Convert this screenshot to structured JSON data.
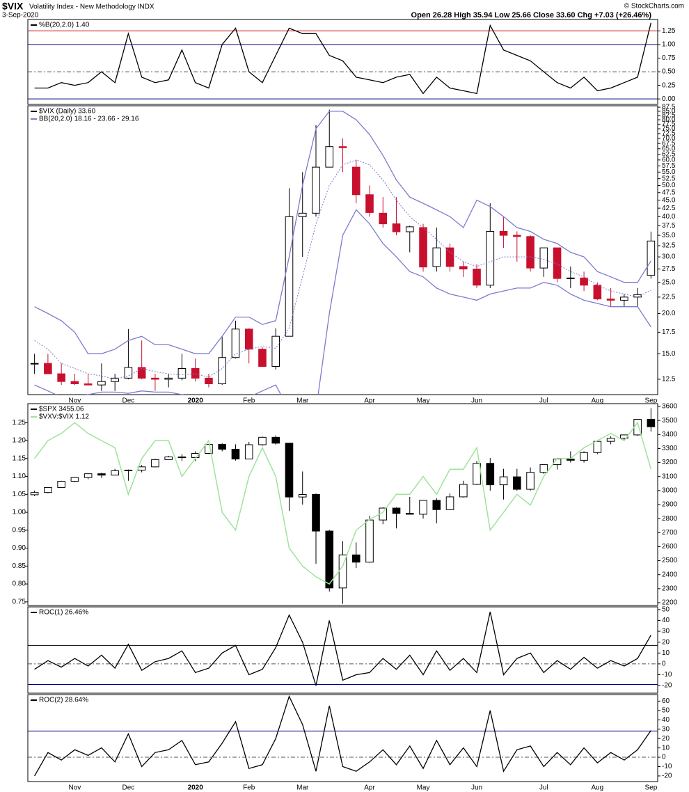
{
  "header": {
    "symbol": "$VIX",
    "subtitle": "Volatility Index - New Methodology  INDX",
    "date": "3-Sep-2020",
    "quote": "Open 26.28  High 35.94  Low 25.66  Close 33.60  Chg +7.03 (+26.46%)",
    "source": "© StockCharts.com"
  },
  "chart_data": [
    {
      "type": "line",
      "ylim": [
        -0.1,
        1.46
      ],
      "yticks": [
        {
          "value": 0,
          "label": "0.00"
        },
        0.25,
        {
          "value": 0.5,
          "label": "0.50"
        },
        0.75,
        {
          "value": 1,
          "label": "1.00"
        },
        1.25
      ],
      "hlines": [
        {
          "value": 1.25,
          "color": "#cc0000"
        },
        {
          "value": 1,
          "color": "#000080"
        },
        {
          "value": 0,
          "color": "#000080"
        },
        {
          "value": 0.5,
          "color": "#555555",
          "dash": true
        }
      ],
      "series": [
        {
          "name": "%B(20,2.0) 1.40",
          "type": "line",
          "color": "#000000",
          "values": [
            0.2,
            0.2,
            0.3,
            0.25,
            0.3,
            0.5,
            0.3,
            1.2,
            0.4,
            0.3,
            0.35,
            0.9,
            0.3,
            0.2,
            1.0,
            1.3,
            0.5,
            0.3,
            0.8,
            1.3,
            1.2,
            1.2,
            0.8,
            0.7,
            0.4,
            0.35,
            0.3,
            0.4,
            0.45,
            0.1,
            0.4,
            0.2,
            0.15,
            0.1,
            1.35,
            0.9,
            0.8,
            0.7,
            0.5,
            0.3,
            0.2,
            0.4,
            0.15,
            0.2,
            0.3,
            0.4,
            1.4
          ]
        }
      ]
    },
    {
      "type": "candlestick",
      "log_scale": true,
      "ylim": [
        11.2,
        88.4
      ],
      "yticks": [
        12.5,
        {
          "value": 15,
          "label": "15.0"
        },
        17.5,
        {
          "value": 20,
          "label": "20.0"
        },
        22.5,
        {
          "value": 25,
          "label": "25.0"
        },
        27.5,
        {
          "value": 30,
          "label": "30.0"
        },
        32.5,
        {
          "value": 35,
          "label": "35.0"
        },
        37.5,
        {
          "value": 40,
          "label": "40.0"
        },
        42.5,
        {
          "value": 45,
          "label": "45.0"
        },
        47.5,
        {
          "value": 50,
          "label": "50.0"
        },
        52.5,
        {
          "value": 55,
          "label": "55.0"
        },
        57.5,
        {
          "value": 60,
          "label": "60.0"
        },
        62.5,
        {
          "value": 65,
          "label": "65.0"
        },
        67.5,
        {
          "value": 70,
          "label": "70.0"
        },
        72.5,
        {
          "value": 75,
          "label": "75.0"
        },
        77.5,
        {
          "value": 80,
          "label": "80.0"
        },
        82.5,
        {
          "value": 85,
          "label": "85.0"
        },
        87.5
      ],
      "categories": [
        null,
        null,
        null,
        "Nov",
        null,
        null,
        null,
        "Dec",
        null,
        null,
        null,
        null,
        "2020",
        null,
        null,
        null,
        "Feb",
        null,
        null,
        null,
        "Mar",
        null,
        null,
        null,
        null,
        "Apr",
        null,
        null,
        null,
        "May",
        null,
        null,
        null,
        "Jun",
        null,
        null,
        null,
        null,
        "Jul",
        null,
        null,
        null,
        "Aug",
        null,
        null,
        null,
        "Sep"
      ],
      "series": [
        {
          "name": "$VIX (Daily) 33.60",
          "type": "candlestick",
          "color": "#000000",
          "down_color": "#c8102e",
          "open": [
            14,
            14,
            13,
            12.3,
            12.1,
            12,
            12.3,
            12.6,
            13.6,
            12.6,
            12.5,
            12.6,
            13.5,
            12.6,
            12.1,
            14.6,
            17.9,
            15.5,
            13.7,
            17,
            40,
            41,
            57,
            66,
            57,
            46.8,
            41,
            38,
            35.9,
            37,
            28,
            32,
            28,
            27.5,
            24.5,
            36,
            35,
            34.7,
            27.7,
            32,
            25.7,
            25.8,
            24.5,
            22.2,
            22,
            22.5,
            26.28
          ],
          "high": [
            15,
            15,
            14,
            13,
            13,
            14,
            13,
            17.9,
            16.5,
            13,
            13,
            15,
            14.5,
            13,
            17,
            19,
            18,
            15.7,
            18,
            49,
            55,
            77,
            86,
            70,
            60,
            50,
            46,
            46,
            37.5,
            38,
            37,
            33,
            29,
            28.5,
            44,
            40,
            36,
            35,
            32,
            32,
            28,
            27,
            25,
            24,
            23,
            24,
            35.94
          ],
          "low": [
            13,
            13,
            12,
            12,
            12,
            11.5,
            11.5,
            12.5,
            12.5,
            11.5,
            11.8,
            12.4,
            12.3,
            11.8,
            12,
            14.5,
            14,
            13.7,
            13.4,
            17,
            30,
            40,
            57,
            55,
            44,
            40,
            37,
            35,
            31,
            27,
            27,
            27,
            26,
            24,
            24,
            32,
            29,
            27,
            26,
            25,
            24,
            23.5,
            22,
            21,
            21,
            21,
            25.66
          ],
          "close": [
            14,
            13,
            12.3,
            12.1,
            12,
            12.3,
            12.6,
            13.6,
            12.6,
            12.5,
            12.6,
            13.5,
            12.6,
            12.1,
            14.6,
            17.9,
            15.5,
            13.7,
            17,
            40,
            41,
            57,
            66,
            65.5,
            46.8,
            41.2,
            38,
            35.9,
            37.2,
            27.9,
            32,
            28,
            27.5,
            24.5,
            36,
            35,
            34.7,
            27.7,
            32,
            25.7,
            25.8,
            24.5,
            22.2,
            22,
            22.5,
            22.9,
            33.6
          ]
        },
        {
          "name": "BB(20,2.0) 18.16 - 23.66 - 29.16",
          "type": "band",
          "color": "#7b7bd0",
          "upper": [
            21,
            20,
            19,
            17.5,
            15,
            15,
            15.5,
            16.5,
            17,
            16,
            16,
            15.5,
            15,
            15,
            17,
            19.5,
            19.5,
            18.5,
            19,
            30,
            50,
            75,
            85,
            85,
            80,
            72,
            62,
            52,
            46,
            44,
            42,
            40,
            37,
            45,
            43,
            40,
            37,
            36,
            34,
            33,
            31,
            30,
            27,
            26,
            25,
            25,
            29.16
          ],
          "middle": [
            16.5,
            15.5,
            14,
            13.5,
            13,
            12.8,
            12.5,
            12.8,
            13.5,
            13.2,
            13,
            12.9,
            13,
            12.7,
            13.5,
            15,
            15.5,
            15.8,
            15.6,
            18,
            26,
            38,
            50,
            58,
            60,
            58,
            52,
            45,
            40,
            37,
            34,
            31,
            29,
            28,
            29,
            30,
            30,
            30,
            29.5,
            28.5,
            27,
            26,
            24.5,
            23.5,
            23,
            22.5,
            23.66
          ],
          "lower": [
            12,
            11.5,
            11,
            11,
            11.2,
            11.4,
            11.4,
            11.3,
            11.5,
            11.4,
            11.4,
            11.2,
            11,
            11,
            11,
            10.8,
            11,
            11.5,
            12,
            10,
            8,
            10,
            20,
            35,
            42,
            38,
            33,
            30,
            27,
            26,
            24,
            23,
            22.5,
            22,
            23,
            23.5,
            24,
            24,
            25,
            24.5,
            23,
            22,
            21.5,
            21,
            21,
            21,
            18.16
          ]
        }
      ]
    },
    {
      "type": "candlestick",
      "ylim": [
        2180,
        3620
      ],
      "yticks": [
        2200,
        2300,
        2400,
        2500,
        2600,
        2700,
        2800,
        2900,
        3000,
        3100,
        3200,
        3300,
        3400,
        3500,
        3600
      ],
      "y2lim": [
        0.74,
        1.303
      ],
      "y2ticks": [
        0.75,
        {
          "value": 0.8,
          "label": "0.80"
        },
        0.85,
        {
          "value": 0.9,
          "label": "0.90"
        },
        0.95,
        {
          "value": 1,
          "label": "1.00"
        },
        1.05,
        {
          "value": 1.1,
          "label": "1.10"
        },
        1.15,
        {
          "value": 1.2,
          "label": "1.20"
        },
        1.25
      ],
      "series": [
        {
          "name": "$SPX 3455.06",
          "type": "candlestick",
          "color": "#000000",
          "down_color": "#000000",
          "open": [
            2970,
            2986,
            3022,
            3066,
            3093,
            3120,
            3110,
            3141,
            3146,
            3169,
            3221,
            3240,
            3235,
            3265,
            3329,
            3295,
            3225,
            3327,
            3380,
            3338,
            2954,
            2972,
            2711,
            2305,
            2541,
            2489,
            2790,
            2875,
            2837,
            2831,
            2930,
            2864,
            2955,
            3044,
            3194,
            3041,
            3098,
            3009,
            3130,
            3185,
            3225,
            3216,
            3271,
            3351,
            3373,
            3397,
            3508
          ],
          "high": [
            3000,
            3025,
            3070,
            3095,
            3122,
            3127,
            3155,
            3150,
            3182,
            3226,
            3248,
            3260,
            3280,
            3330,
            3337,
            3330,
            3347,
            3385,
            3393,
            3340,
            3136,
            2980,
            2720,
            2640,
            2630,
            2820,
            2880,
            2880,
            2955,
            2930,
            2945,
            2980,
            3070,
            3211,
            3233,
            3155,
            3155,
            3165,
            3186,
            3233,
            3280,
            3280,
            3352,
            3387,
            3399,
            3510,
            3588
          ],
          "low": [
            2960,
            2980,
            3020,
            3060,
            3080,
            3090,
            3110,
            3070,
            3130,
            3165,
            3220,
            3210,
            3210,
            3260,
            3280,
            3214,
            3225,
            3320,
            3328,
            2855,
            2900,
            2478,
            2280,
            2192,
            2447,
            2485,
            2760,
            2730,
            2830,
            2800,
            2766,
            2860,
            2950,
            3040,
            2999,
            2936,
            3000,
            3000,
            3120,
            3150,
            3200,
            3200,
            3260,
            3330,
            3360,
            3390,
            3420
          ],
          "close": [
            2986,
            3022,
            3066,
            3093,
            3120,
            3110,
            3141,
            3146,
            3169,
            3221,
            3240,
            3235,
            3265,
            3329,
            3295,
            3225,
            3327,
            3380,
            3338,
            2954,
            2972,
            2711,
            2305,
            2541,
            2489,
            2790,
            2875,
            2837,
            2831,
            2930,
            2864,
            2955,
            3044,
            3194,
            3041,
            3098,
            3009,
            3130,
            3185,
            3225,
            3216,
            3271,
            3351,
            3373,
            3397,
            3508,
            3455.06
          ]
        },
        {
          "name": "$VXV:$VIX 1.12",
          "type": "line",
          "axis": "y2",
          "color": "#9ee39a",
          "values": [
            1.15,
            1.2,
            1.22,
            1.25,
            1.22,
            1.2,
            1.18,
            1.05,
            1.15,
            1.2,
            1.2,
            1.1,
            1.15,
            1.2,
            1.0,
            0.95,
            1.1,
            1.18,
            1.1,
            0.9,
            0.85,
            0.82,
            0.8,
            0.85,
            0.95,
            0.98,
            1.0,
            1.05,
            1.05,
            1.1,
            1.05,
            1.12,
            1.12,
            1.18,
            0.95,
            1.0,
            1.05,
            1.02,
            1.1,
            1.15,
            1.15,
            1.18,
            1.2,
            1.22,
            1.2,
            1.25,
            1.12
          ]
        }
      ]
    },
    {
      "type": "line",
      "ylim": [
        -27,
        52.5
      ],
      "yticks": [
        -20,
        -10,
        0,
        10,
        20,
        30,
        40,
        50
      ],
      "hlines": [
        {
          "value": 17,
          "color": "#000000"
        },
        {
          "value": -19,
          "color": "#000080"
        },
        {
          "value": 0,
          "color": "#555555",
          "dash": true
        }
      ],
      "series": [
        {
          "name": "ROC(1) 26.46%",
          "type": "line",
          "color": "#000000",
          "values": [
            -5,
            3,
            -3,
            5,
            -2,
            8,
            -4,
            18,
            -6,
            2,
            5,
            12,
            -8,
            -4,
            10,
            17,
            -10,
            -5,
            15,
            45,
            20,
            -20,
            40,
            -15,
            -10,
            -8,
            5,
            -5,
            8,
            -10,
            12,
            -6,
            5,
            -8,
            48,
            -10,
            5,
            10,
            -8,
            3,
            -5,
            6,
            -4,
            3,
            -2,
            5,
            26.46
          ]
        }
      ]
    },
    {
      "type": "line",
      "ylim": [
        -26,
        67
      ],
      "yticks": [
        -20,
        -10,
        0,
        10,
        20,
        30,
        40,
        50,
        60
      ],
      "hlines": [
        {
          "value": 28,
          "color": "#000080"
        },
        {
          "value": 0,
          "color": "#555555",
          "dash": true
        }
      ],
      "categories": [
        null,
        null,
        null,
        "Nov",
        null,
        null,
        null,
        "Dec",
        null,
        null,
        null,
        null,
        "2020",
        null,
        null,
        null,
        "Feb",
        null,
        null,
        null,
        "Mar",
        null,
        null,
        null,
        null,
        "Apr",
        null,
        null,
        null,
        "May",
        null,
        null,
        null,
        "Jun",
        null,
        null,
        null,
        null,
        "Jul",
        null,
        null,
        null,
        "Aug",
        null,
        null,
        null,
        "Sep"
      ],
      "series": [
        {
          "name": "ROC(2) 28.64%",
          "type": "line",
          "color": "#000000",
          "values": [
            -20,
            5,
            -3,
            8,
            2,
            10,
            -5,
            25,
            -10,
            5,
            8,
            18,
            -8,
            -5,
            15,
            38,
            -12,
            -8,
            20,
            65,
            35,
            -15,
            55,
            -10,
            -15,
            -5,
            8,
            -8,
            12,
            -12,
            18,
            -8,
            10,
            -10,
            50,
            -15,
            8,
            12,
            -10,
            5,
            -8,
            10,
            -6,
            5,
            -3,
            8,
            28.64
          ]
        }
      ]
    }
  ]
}
